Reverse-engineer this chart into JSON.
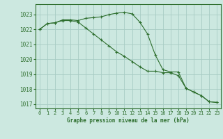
{
  "title": "Graphe pression niveau de la mer (hPa)",
  "background_color": "#cce8e0",
  "grid_color": "#a8ccc4",
  "line_color": "#2d6e2d",
  "xlim": [
    -0.5,
    23.5
  ],
  "ylim": [
    1016.7,
    1023.7
  ],
  "yticks": [
    1017,
    1018,
    1019,
    1020,
    1021,
    1022,
    1023
  ],
  "xticks": [
    0,
    1,
    2,
    3,
    4,
    5,
    6,
    7,
    8,
    9,
    10,
    11,
    12,
    13,
    14,
    15,
    16,
    17,
    18,
    19,
    20,
    21,
    22,
    23
  ],
  "line1_x": [
    0,
    1,
    2,
    3,
    4,
    5,
    6,
    7,
    8,
    9,
    10,
    11,
    12,
    13,
    14,
    15,
    16,
    17,
    18,
    19,
    20,
    21,
    22,
    23
  ],
  "line1_y": [
    1022.0,
    1022.4,
    1022.45,
    1022.65,
    1022.65,
    1022.6,
    1022.75,
    1022.8,
    1022.85,
    1023.0,
    1023.1,
    1023.15,
    1023.05,
    1022.5,
    1021.7,
    1020.3,
    1019.3,
    1019.15,
    1019.15,
    1018.05,
    1017.8,
    1017.55,
    1017.15,
    1017.1
  ],
  "line2_x": [
    0,
    1,
    2,
    3,
    4,
    5,
    6,
    7,
    8,
    9,
    10,
    11,
    12,
    13,
    14,
    15,
    16,
    17,
    18,
    19,
    20,
    21,
    22,
    23
  ],
  "line2_y": [
    1022.0,
    1022.4,
    1022.45,
    1022.6,
    1022.6,
    1022.5,
    1022.1,
    1021.7,
    1021.3,
    1020.9,
    1020.5,
    1020.2,
    1019.85,
    1019.5,
    1019.2,
    1019.2,
    1019.1,
    1019.1,
    1018.9,
    1018.05,
    1017.8,
    1017.55,
    1017.15,
    1017.1
  ]
}
